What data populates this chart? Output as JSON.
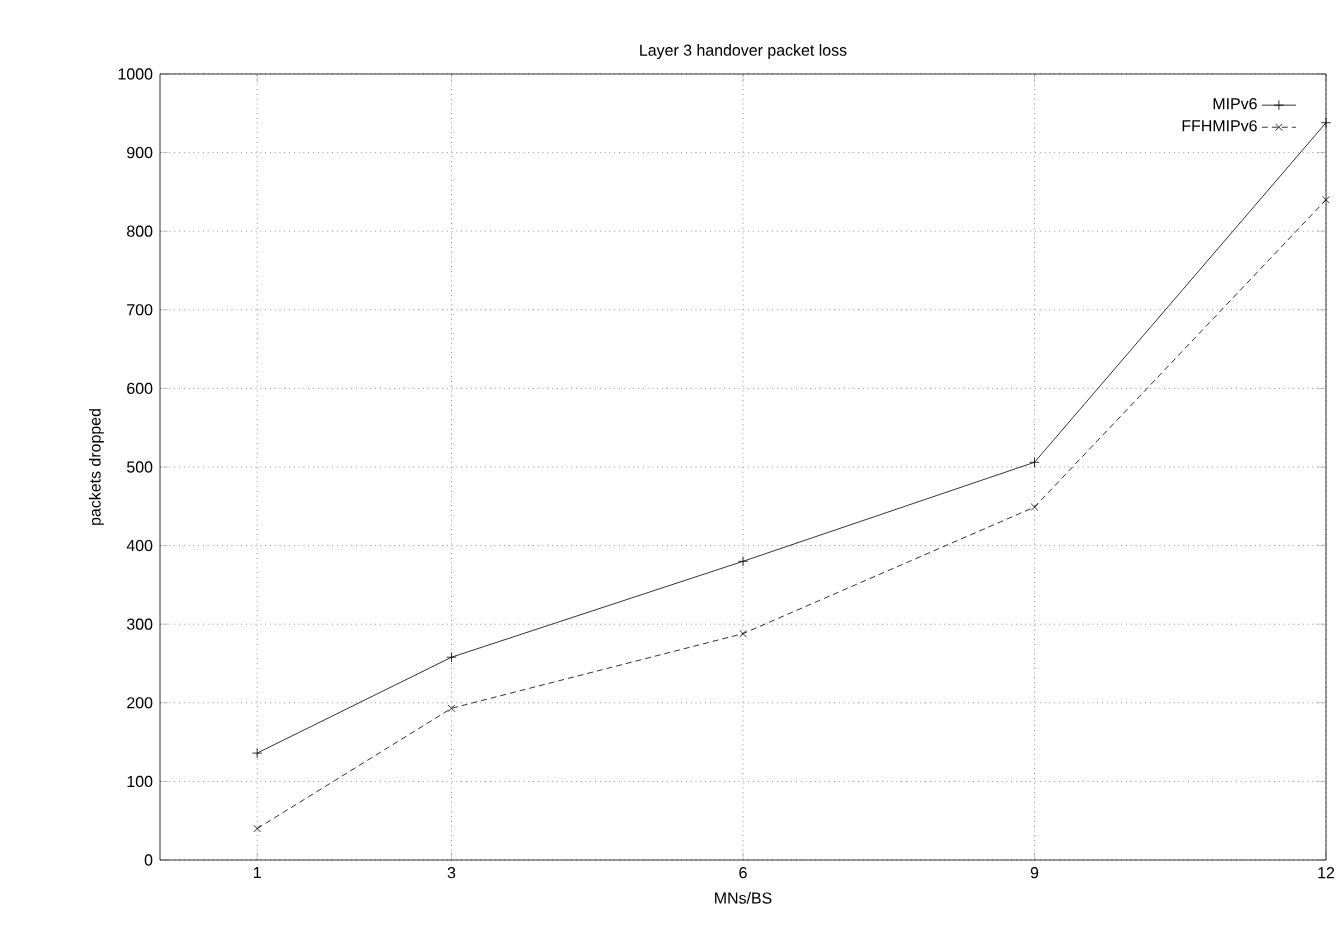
{
  "chart_data": {
    "type": "line",
    "title": "Layer 3 handover packet loss",
    "xlabel": "MNs/BS",
    "ylabel": "packets dropped",
    "x": [
      1,
      3,
      6,
      9,
      12
    ],
    "series": [
      {
        "name": "MIPv6",
        "color": "#000000",
        "values": [
          136,
          258,
          380,
          506,
          938
        ],
        "marker": "plus",
        "line_style": "solid"
      },
      {
        "name": "FFHMIPv6",
        "color": "#000000",
        "values": [
          40,
          193,
          288,
          449,
          840
        ],
        "marker": "cross",
        "line_style": "dashed"
      }
    ],
    "xlim": [
      0,
      12
    ],
    "xticks": [
      1,
      3,
      6,
      9,
      12
    ],
    "ylim": [
      0,
      1000
    ],
    "yticks": [
      0,
      100,
      200,
      300,
      400,
      500,
      600,
      700,
      800,
      900,
      1000
    ],
    "grid": true,
    "legend": "top right"
  }
}
